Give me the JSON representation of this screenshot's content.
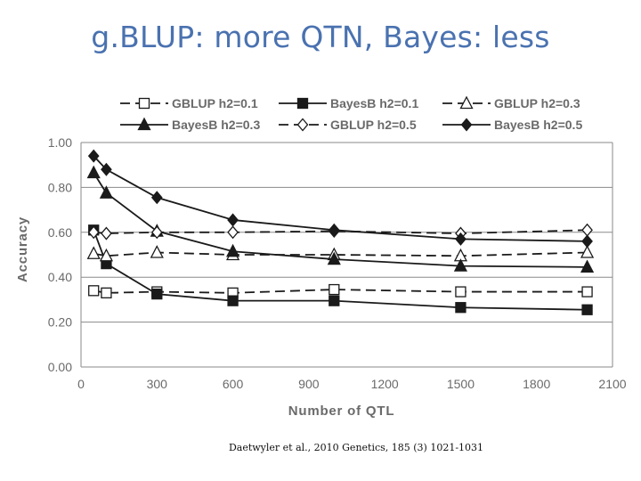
{
  "slide": {
    "title": "g.BLUP: more QTN,  Bayes: less",
    "citation": "Daetwyler et al., 2010 Genetics, 185 (3) 1021-1031"
  },
  "chart_data": {
    "type": "line",
    "title": "",
    "xlabel": "Number of QTL",
    "ylabel": "Accuracy",
    "xlim": [
      0,
      2100
    ],
    "ylim": [
      0.0,
      1.0
    ],
    "x_ticks": [
      "0",
      "300",
      "600",
      "900",
      "1200",
      "1500",
      "1800",
      "2100"
    ],
    "y_ticks": [
      "0.00",
      "0.20",
      "0.40",
      "0.60",
      "0.80",
      "1.00"
    ],
    "grid": "horizontal",
    "legend_position": "top",
    "series": [
      {
        "name": "GBLUP h2=0.1",
        "style": "dashed",
        "marker": "square-open",
        "x": [
          50,
          100,
          300,
          600,
          1000,
          1500,
          2000
        ],
        "y": [
          0.34,
          0.33,
          0.335,
          0.33,
          0.345,
          0.335,
          0.335
        ]
      },
      {
        "name": "BayesB h2=0.1",
        "style": "solid",
        "marker": "square-filled",
        "x": [
          50,
          100,
          300,
          600,
          1000,
          1500,
          2000
        ],
        "y": [
          0.61,
          0.46,
          0.325,
          0.295,
          0.295,
          0.265,
          0.255
        ]
      },
      {
        "name": "GBLUP h2=0.3",
        "style": "dashed",
        "marker": "triangle-open",
        "x": [
          50,
          100,
          300,
          600,
          1000,
          1500,
          2000
        ],
        "y": [
          0.505,
          0.495,
          0.51,
          0.5,
          0.5,
          0.495,
          0.51
        ]
      },
      {
        "name": "BayesB h2=0.3",
        "style": "solid",
        "marker": "triangle-filled",
        "x": [
          50,
          100,
          300,
          600,
          1000,
          1500,
          2000
        ],
        "y": [
          0.865,
          0.775,
          0.605,
          0.515,
          0.48,
          0.45,
          0.445
        ]
      },
      {
        "name": "GBLUP h2=0.5",
        "style": "dashed",
        "marker": "diamond-open",
        "x": [
          50,
          100,
          300,
          600,
          1000,
          1500,
          2000
        ],
        "y": [
          0.6,
          0.595,
          0.6,
          0.6,
          0.605,
          0.595,
          0.61
        ]
      },
      {
        "name": "BayesB h2=0.5",
        "style": "solid",
        "marker": "diamond-filled",
        "x": [
          50,
          100,
          300,
          600,
          1000,
          1500,
          2000
        ],
        "y": [
          0.94,
          0.88,
          0.755,
          0.655,
          0.61,
          0.57,
          0.56
        ]
      }
    ]
  }
}
